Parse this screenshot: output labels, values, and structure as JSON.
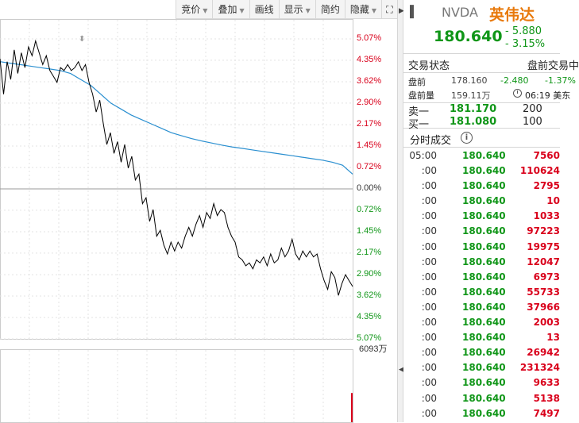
{
  "toolbar": [
    {
      "label": "竞价",
      "dropdown": true
    },
    {
      "label": "叠加",
      "dropdown": true
    },
    {
      "label": "画线",
      "dropdown": false
    },
    {
      "label": "显示",
      "dropdown": true
    },
    {
      "label": "简约",
      "dropdown": false
    },
    {
      "label": "隐藏",
      "dropdown": true
    }
  ],
  "colors": {
    "up": "#d9001b",
    "down": "#109618",
    "price_line": "#000000",
    "avg_line": "#2a8fd0",
    "accent": "#e8790b"
  },
  "chart_data": {
    "type": "line",
    "y_pct_labels_up": [
      "5.07%",
      "4.35%",
      "3.62%",
      "2.90%",
      "2.17%",
      "1.45%",
      "0.72%"
    ],
    "y_pct_label_zero": "0.00%",
    "y_pct_labels_down": [
      "0.72%",
      "1.45%",
      "2.17%",
      "2.90%",
      "3.62%",
      "4.35%",
      "5.07%"
    ],
    "ylim_pct": [
      -5.07,
      5.07
    ],
    "price_series_pct": [
      4.4,
      3.2,
      4.3,
      3.7,
      4.7,
      3.9,
      4.6,
      4.1,
      4.8,
      4.5,
      5.0,
      4.6,
      4.2,
      4.5,
      4.0,
      3.8,
      3.6,
      4.1,
      4.0,
      4.2,
      4.0,
      4.1,
      4.3,
      4.0,
      4.2,
      3.6,
      3.2,
      2.6,
      3.0,
      2.2,
      1.5,
      1.9,
      1.2,
      1.6,
      0.9,
      1.5,
      0.7,
      1.1,
      0.3,
      0.5,
      -0.5,
      -0.3,
      -1.1,
      -0.7,
      -1.6,
      -1.4,
      -1.9,
      -2.2,
      -1.8,
      -2.1,
      -1.8,
      -2.0,
      -1.6,
      -1.3,
      -1.6,
      -1.2,
      -0.9,
      -1.3,
      -0.8,
      -1.0,
      -0.5,
      -0.9,
      -0.7,
      -0.8,
      -1.3,
      -1.6,
      -1.8,
      -2.3,
      -2.4,
      -2.6,
      -2.5,
      -2.7,
      -2.4,
      -2.5,
      -2.3,
      -2.6,
      -2.2,
      -2.5,
      -2.4,
      -2.0,
      -2.3,
      -2.1,
      -1.7,
      -2.2,
      -2.4,
      -2.1,
      -2.3,
      -2.1,
      -2.3,
      -2.2,
      -2.7,
      -3.1,
      -3.4,
      -2.8,
      -3.0,
      -3.6,
      -3.2,
      -2.9,
      -3.1,
      -3.3
    ],
    "avg_series_pct": [
      4.3,
      4.25,
      4.2,
      4.15,
      4.1,
      4.05,
      4.0,
      3.9,
      3.7,
      3.5,
      3.2,
      2.9,
      2.7,
      2.5,
      2.35,
      2.2,
      2.05,
      1.9,
      1.8,
      1.7,
      1.62,
      1.55,
      1.48,
      1.42,
      1.37,
      1.32,
      1.27,
      1.22,
      1.17,
      1.12,
      1.07,
      1.02,
      0.97,
      0.9,
      0.8,
      0.5
    ],
    "volume_label": "6093万",
    "volume_spike_pct": 0.4
  },
  "quote": {
    "code": "NVDA",
    "name": "英伟达",
    "price": "180.640",
    "change": "- 5.880",
    "change_pct": "- 3.15%",
    "status_label": "交易状态",
    "status_value": "盘前交易中",
    "pre_label": "盘前",
    "pre_price": "178.160",
    "pre_change": "-2.480",
    "pre_change_pct": "-1.37%",
    "pre_vol_label": "盘前量",
    "pre_vol": "159.11万",
    "pre_time": "06:19 美东",
    "ask_label": "卖一",
    "ask_price": "181.170",
    "ask_qty": "200",
    "bid_label": "买一",
    "bid_price": "181.080",
    "bid_qty": "100"
  },
  "ticks": {
    "title": "分时成交",
    "rows": [
      {
        "time": "05:00",
        "price": "180.640",
        "vol": "7560"
      },
      {
        "time": ":00",
        "price": "180.640",
        "vol": "110624"
      },
      {
        "time": ":00",
        "price": "180.640",
        "vol": "2795"
      },
      {
        "time": ":00",
        "price": "180.640",
        "vol": "10"
      },
      {
        "time": ":00",
        "price": "180.640",
        "vol": "1033"
      },
      {
        "time": ":00",
        "price": "180.640",
        "vol": "97223"
      },
      {
        "time": ":00",
        "price": "180.640",
        "vol": "19975"
      },
      {
        "time": ":00",
        "price": "180.640",
        "vol": "12047"
      },
      {
        "time": ":00",
        "price": "180.640",
        "vol": "6973"
      },
      {
        "time": ":00",
        "price": "180.640",
        "vol": "55733"
      },
      {
        "time": ":00",
        "price": "180.640",
        "vol": "37966"
      },
      {
        "time": ":00",
        "price": "180.640",
        "vol": "2003"
      },
      {
        "time": ":00",
        "price": "180.640",
        "vol": "13"
      },
      {
        "time": ":00",
        "price": "180.640",
        "vol": "26942"
      },
      {
        "time": ":00",
        "price": "180.640",
        "vol": "231324"
      },
      {
        "time": ":00",
        "price": "180.640",
        "vol": "9633"
      },
      {
        "time": ":00",
        "price": "180.640",
        "vol": "5138"
      },
      {
        "time": ":00",
        "price": "180.640",
        "vol": "7497"
      }
    ]
  }
}
